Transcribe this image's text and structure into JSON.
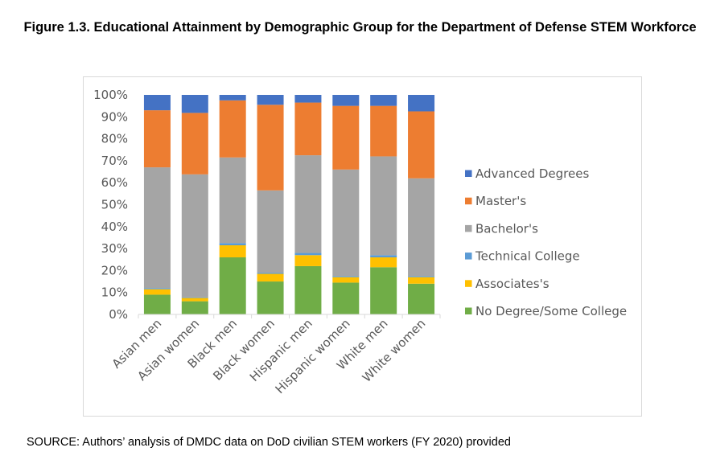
{
  "figure": {
    "title": "Figure 1.3. Educational Attainment by Demographic Group for the Department of Defense STEM Workforce",
    "source": "SOURCE: Authors’ analysis of DMDC data on DoD civilian STEM workers (FY 2020) provided"
  },
  "colors": {
    "advanced": "#4472c4",
    "masters": "#ed7d31",
    "bachelors": "#a5a5a5",
    "technical": "#5b9bd5",
    "associates": "#ffc000",
    "no_degree": "#70ad47"
  },
  "chart_data": {
    "type": "bar",
    "stacked": true,
    "percent": true,
    "title": "",
    "xlabel": "",
    "ylabel": "",
    "ylim": [
      0,
      100
    ],
    "yticks": [
      "0%",
      "10%",
      "20%",
      "30%",
      "40%",
      "50%",
      "60%",
      "70%",
      "80%",
      "90%",
      "100%"
    ],
    "grid": false,
    "legend_position": "right",
    "categories": [
      "Asian men",
      "Asian women",
      "Black men",
      "Black women",
      "Hispanic men",
      "Hispanic women",
      "White men",
      "White women"
    ],
    "series": [
      {
        "key": "no_degree",
        "name": "No Degree/Some College",
        "values": [
          9,
          6,
          26,
          15,
          22,
          14.5,
          21.5,
          14
        ]
      },
      {
        "key": "associates",
        "name": "Associates's",
        "values": [
          2.5,
          1.5,
          5.5,
          3.5,
          5,
          2.5,
          4.5,
          3
        ]
      },
      {
        "key": "technical",
        "name": "Technical College",
        "values": [
          0.5,
          0.3,
          1,
          0.5,
          1,
          0.5,
          1,
          0.5
        ]
      },
      {
        "key": "bachelors",
        "name": "Bachelor's",
        "values": [
          55,
          56,
          39,
          37.5,
          44.5,
          48.5,
          45,
          44.5
        ]
      },
      {
        "key": "masters",
        "name": "Master's",
        "values": [
          26,
          28,
          26,
          39,
          24,
          29,
          23,
          30.5
        ]
      },
      {
        "key": "advanced",
        "name": "Advanced Degrees",
        "values": [
          7,
          8.2,
          2.5,
          4.5,
          3.5,
          5,
          5,
          7.5
        ]
      }
    ]
  }
}
